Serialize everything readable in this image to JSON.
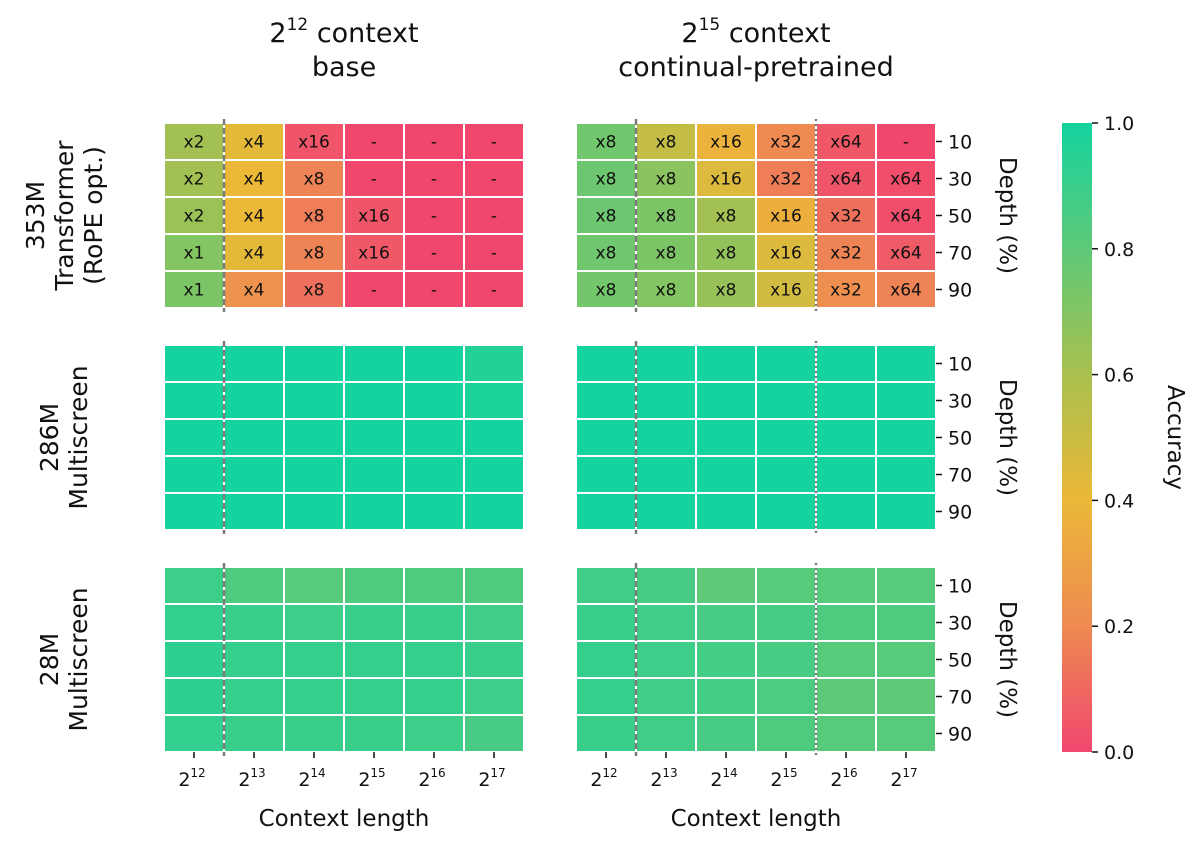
{
  "chart_data": {
    "type": "heatmap",
    "column_titles": [
      {
        "base": "2",
        "exp": "12",
        "rest": " context",
        "line2": "base"
      },
      {
        "base": "2",
        "exp": "15",
        "rest": " context",
        "line2": "continual-pretrained"
      }
    ],
    "row_titles": [
      {
        "line1": "353M",
        "line2": "Transformer",
        "line3": "(RoPE opt.)"
      },
      {
        "line1": "286M",
        "line2": "Multiscreen",
        "line3": ""
      },
      {
        "line1": "28M",
        "line2": "Multiscreen",
        "line3": ""
      }
    ],
    "x": {
      "label": "Context length",
      "ticks": [
        {
          "base": "2",
          "exp": "12"
        },
        {
          "base": "2",
          "exp": "13"
        },
        {
          "base": "2",
          "exp": "14"
        },
        {
          "base": "2",
          "exp": "15"
        },
        {
          "base": "2",
          "exp": "16"
        },
        {
          "base": "2",
          "exp": "17"
        }
      ]
    },
    "y": {
      "label": "Depth (%)",
      "ticks": [
        "10",
        "30",
        "50",
        "70",
        "90"
      ]
    },
    "colorbar": {
      "label": "Accuracy",
      "range": [
        0,
        1
      ],
      "ticks": [
        "0.0",
        "0.2",
        "0.4",
        "0.6",
        "0.8",
        "1.0"
      ],
      "colors": [
        "#f0476e",
        "#ee8a52",
        "#ebb838",
        "#a9c04e",
        "#5ec978",
        "#14d39e"
      ]
    },
    "panels": [
      {
        "row": 0,
        "col": 0,
        "dashed_after_col": 0,
        "dotted_after_col": null,
        "values": [
          [
            0.62,
            0.42,
            0.04,
            0.0,
            0.0,
            0.0
          ],
          [
            0.62,
            0.4,
            0.18,
            0.0,
            0.0,
            0.0
          ],
          [
            0.64,
            0.4,
            0.16,
            0.04,
            0.0,
            0.0
          ],
          [
            0.7,
            0.42,
            0.18,
            0.05,
            0.0,
            0.0
          ],
          [
            0.72,
            0.24,
            0.12,
            0.0,
            0.0,
            0.0
          ]
        ],
        "labels": [
          [
            "x2",
            "x4",
            "x16",
            "-",
            "-",
            "-"
          ],
          [
            "x2",
            "x4",
            "x8",
            "-",
            "-",
            "-"
          ],
          [
            "x2",
            "x4",
            "x8",
            "x16",
            "-",
            "-"
          ],
          [
            "x1",
            "x4",
            "x8",
            "x16",
            "-",
            "-"
          ],
          [
            "x1",
            "x4",
            "x8",
            "-",
            "-",
            "-"
          ]
        ]
      },
      {
        "row": 0,
        "col": 1,
        "dashed_after_col": 0,
        "dotted_after_col": 3,
        "values": [
          [
            0.75,
            0.52,
            0.38,
            0.2,
            0.05,
            0.0
          ],
          [
            0.76,
            0.68,
            0.45,
            0.16,
            0.04,
            0.02
          ],
          [
            0.76,
            0.72,
            0.62,
            0.36,
            0.12,
            0.02
          ],
          [
            0.75,
            0.72,
            0.66,
            0.45,
            0.18,
            0.06
          ],
          [
            0.74,
            0.7,
            0.65,
            0.48,
            0.22,
            0.18
          ]
        ],
        "labels": [
          [
            "x8",
            "x8",
            "x16",
            "x32",
            "x64",
            "-"
          ],
          [
            "x8",
            "x8",
            "x16",
            "x32",
            "x64",
            "x64"
          ],
          [
            "x8",
            "x8",
            "x8",
            "x16",
            "x32",
            "x64"
          ],
          [
            "x8",
            "x8",
            "x8",
            "x16",
            "x32",
            "x64"
          ],
          [
            "x8",
            "x8",
            "x8",
            "x16",
            "x32",
            "x64"
          ]
        ]
      },
      {
        "row": 1,
        "col": 0,
        "dashed_after_col": 0,
        "dotted_after_col": null,
        "values": [
          [
            1.0,
            1.0,
            1.0,
            1.0,
            1.0,
            0.96
          ],
          [
            1.0,
            1.0,
            1.0,
            1.0,
            1.0,
            0.98
          ],
          [
            1.0,
            1.0,
            1.0,
            1.0,
            1.0,
            1.0
          ],
          [
            1.0,
            1.0,
            1.0,
            1.0,
            1.0,
            1.0
          ],
          [
            1.0,
            1.0,
            1.0,
            1.0,
            1.0,
            1.0
          ]
        ],
        "labels": []
      },
      {
        "row": 1,
        "col": 1,
        "dashed_after_col": 0,
        "dotted_after_col": 3,
        "values": [
          [
            1.0,
            1.0,
            1.0,
            1.0,
            1.0,
            1.0
          ],
          [
            1.0,
            1.0,
            1.0,
            1.0,
            1.0,
            1.0
          ],
          [
            1.0,
            1.0,
            1.0,
            1.0,
            1.0,
            1.0
          ],
          [
            1.0,
            1.0,
            1.0,
            1.0,
            1.0,
            1.0
          ],
          [
            1.0,
            1.0,
            1.0,
            1.0,
            1.0,
            1.0
          ]
        ],
        "labels": []
      },
      {
        "row": 2,
        "col": 0,
        "dashed_after_col": 0,
        "dotted_after_col": null,
        "values": [
          [
            0.89,
            0.84,
            0.82,
            0.84,
            0.84,
            0.84
          ],
          [
            0.92,
            0.9,
            0.89,
            0.9,
            0.9,
            0.88
          ],
          [
            0.93,
            0.91,
            0.91,
            0.91,
            0.91,
            0.9
          ],
          [
            0.93,
            0.91,
            0.91,
            0.91,
            0.91,
            0.89
          ],
          [
            0.92,
            0.9,
            0.9,
            0.9,
            0.89,
            0.86
          ]
        ],
        "labels": []
      },
      {
        "row": 2,
        "col": 1,
        "dashed_after_col": 0,
        "dotted_after_col": 3,
        "values": [
          [
            0.88,
            0.86,
            0.8,
            0.82,
            0.82,
            0.82
          ],
          [
            0.9,
            0.88,
            0.86,
            0.86,
            0.84,
            0.84
          ],
          [
            0.91,
            0.89,
            0.87,
            0.86,
            0.82,
            0.82
          ],
          [
            0.91,
            0.88,
            0.87,
            0.85,
            0.8,
            0.8
          ],
          [
            0.9,
            0.88,
            0.86,
            0.84,
            0.82,
            0.82
          ]
        ],
        "labels": []
      }
    ]
  }
}
